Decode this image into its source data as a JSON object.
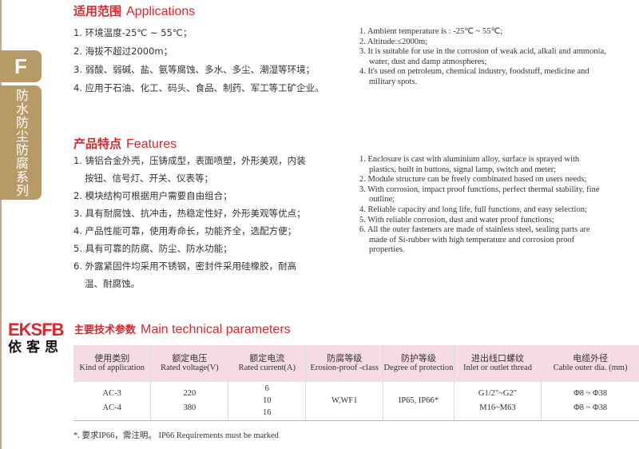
{
  "sidebar": {
    "letter": "F",
    "series": "防水防尘防腐系列"
  },
  "applications": {
    "title_cn": "适用范围",
    "title_en": "Applications",
    "cn": [
      "1. 环境温度-25℃ ~ 55℃；",
      "2. 海拔不超过2000m；",
      "3. 弱酸、弱碱、盐、氨等腐蚀、多水、多尘、潮湿等环境；",
      "4. 应用于石油、化工、码头、食品、制药、军工等工矿企业。"
    ],
    "en": [
      "1. Ambient temperature is : -25℃ ~ 55℃;",
      "2. Altitude:≤2000m;",
      "3. It is suitable for use in the corrosion of weak acid, alkali and ammonia, water, dust and damp atmospheres;",
      "4. It's used on petroleum, chemical industry, foodstuff, medicine and military spots."
    ]
  },
  "features": {
    "title_cn": "产品特点",
    "title_en": "Features",
    "cn": [
      "1. 铸铝合金外壳，压铸成型，表面喷塑，外形美观，内装按钮、信号灯、开关、仪表等；",
      "2. 模块结构可根据用户需要自由组合；",
      "3. 具有耐腐蚀、抗冲击，热稳定性好，外形美观等优点；",
      "4. 产品性能可靠，使用寿命长，功能齐全，选配方便；",
      "5. 具有可靠的防腐、防尘、防水功能；",
      "6. 外露紧固件均采用不锈钢，密封件采用硅橡胶，耐高温、耐腐蚀。"
    ],
    "en": [
      "1. Enclosure is cast with aluminium alloy, surface is sprayed with plastics, built in buttons, signal lamp, switch and meter;",
      "2. Module structure can be freely combinated based on users needs;",
      "3. With corrosion, impact proof functions, perfect thermal stability, fine outline;",
      "4. Reliable capacity and long life, full functions, and easy selection;",
      "5. With reliable corrosion, dust and water proof functions;",
      "6. All the outer fasteners are made of stainless steel, sealing parts are made of Si-rubber with high temperature and corrosion proof properties."
    ]
  },
  "logo": {
    "mark": "EKSFB",
    "name": "依客思"
  },
  "params": {
    "title_cn": "主要技术参数",
    "title_en": "Main technical parameters",
    "headers": [
      [
        "使用类别",
        "Kind of application"
      ],
      [
        "额定电压",
        "Rated voltage(V)"
      ],
      [
        "额定电流",
        "Rated current(A)"
      ],
      [
        "防腐等级",
        "Erosion-proof -class"
      ],
      [
        "防护等级",
        "Degree of protection"
      ],
      [
        "进出线口螺纹",
        "Inlet or outlet thread"
      ],
      [
        "电缆外径",
        "Cable outer dia. (mm)"
      ]
    ],
    "row": [
      [
        "AC-3",
        "AC-4"
      ],
      [
        "220",
        "380"
      ],
      [
        "6",
        "10",
        "16"
      ],
      [
        "W,WF1"
      ],
      [
        "IP65, IP66*"
      ],
      [
        "G1/2\"~G2\"",
        "M16~M63"
      ],
      [
        "Φ8 ~ Φ38",
        "Φ8 ~ Φ38"
      ]
    ],
    "note": "*. 要求IP66，需注明。 IP66 Requirements must be marked"
  }
}
